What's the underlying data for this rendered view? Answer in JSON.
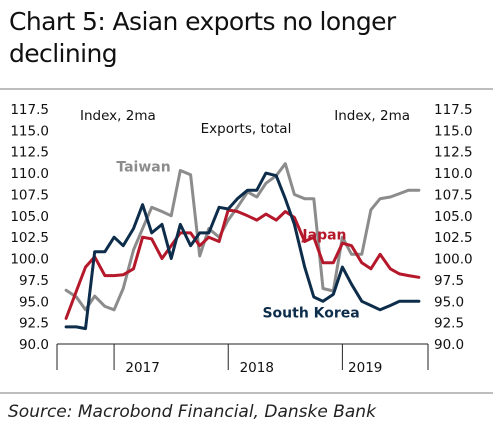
{
  "title_line1": "Chart 5: Asian exports no longer",
  "title_line2": "declining",
  "source": "Source: Macrobond Financial, Danske Bank",
  "chart_data": {
    "type": "line",
    "title": "Exports, total",
    "left_axis_label": "Index, 2ma",
    "right_axis_label": "Index, 2ma",
    "ylim": [
      90.0,
      117.5
    ],
    "yticks": [
      "117.5",
      "115.0",
      "112.5",
      "110.0",
      "107.5",
      "105.0",
      "102.5",
      "100.0",
      "97.5",
      "95.0",
      "92.5",
      "90.0"
    ],
    "ytick_values": [
      117.5,
      115.0,
      112.5,
      110.0,
      107.5,
      105.0,
      102.5,
      100.0,
      97.5,
      95.0,
      92.5,
      90.0
    ],
    "xlim": [
      2016.5,
      2019.75
    ],
    "xticks": [
      "2017",
      "2018",
      "2019"
    ],
    "xtick_values": [
      2017.25,
      2018.25,
      2019.2
    ],
    "year_boundaries": [
      2017.0,
      2018.0,
      2019.0
    ],
    "grid": false,
    "series": [
      {
        "name": "Taiwan",
        "color": "#8c8c8c",
        "x": [
          2016.58,
          2016.67,
          2016.75,
          2016.83,
          2016.92,
          2017.0,
          2017.08,
          2017.17,
          2017.25,
          2017.33,
          2017.42,
          2017.5,
          2017.58,
          2017.67,
          2017.75,
          2017.83,
          2017.92,
          2018.0,
          2018.08,
          2018.17,
          2018.25,
          2018.33,
          2018.42,
          2018.5,
          2018.58,
          2018.67,
          2018.75,
          2018.83,
          2018.92,
          2019.0,
          2019.08,
          2019.17,
          2019.25,
          2019.33,
          2019.42,
          2019.5,
          2019.58,
          2019.67
        ],
        "y": [
          96.3,
          95.5,
          94.0,
          95.6,
          94.4,
          94.0,
          96.5,
          101.0,
          103.5,
          106.0,
          105.5,
          105.0,
          110.3,
          109.8,
          100.3,
          103.5,
          102.5,
          104.5,
          106.0,
          107.8,
          107.2,
          108.8,
          109.7,
          111.1,
          107.5,
          107.0,
          107.0,
          96.5,
          96.2,
          102.5,
          100.5,
          100.5,
          105.7,
          107.0,
          107.2,
          107.6,
          108.0,
          108.0
        ]
      },
      {
        "name": "Japan",
        "color": "#b5182a",
        "x": [
          2016.58,
          2016.67,
          2016.75,
          2016.83,
          2016.92,
          2017.0,
          2017.08,
          2017.17,
          2017.25,
          2017.33,
          2017.42,
          2017.5,
          2017.58,
          2017.67,
          2017.75,
          2017.83,
          2017.92,
          2018.0,
          2018.08,
          2018.17,
          2018.25,
          2018.33,
          2018.42,
          2018.5,
          2018.58,
          2018.67,
          2018.75,
          2018.83,
          2018.92,
          2019.0,
          2019.08,
          2019.17,
          2019.25,
          2019.33,
          2019.42,
          2019.5,
          2019.58,
          2019.67
        ],
        "y": [
          93.0,
          96.2,
          99.0,
          100.2,
          98.0,
          98.0,
          98.1,
          98.8,
          102.5,
          102.3,
          100.0,
          101.5,
          103.0,
          103.0,
          101.5,
          102.5,
          102.0,
          105.7,
          105.5,
          105.0,
          104.5,
          105.2,
          104.5,
          105.5,
          104.8,
          102.0,
          102.5,
          99.5,
          99.5,
          101.8,
          101.5,
          99.5,
          98.8,
          100.5,
          98.8,
          98.2,
          98.0,
          97.8
        ]
      },
      {
        "name": "South Korea",
        "color": "#0d2d4b",
        "x": [
          2016.58,
          2016.67,
          2016.75,
          2016.83,
          2016.92,
          2017.0,
          2017.08,
          2017.17,
          2017.25,
          2017.33,
          2017.42,
          2017.5,
          2017.58,
          2017.67,
          2017.75,
          2017.83,
          2017.92,
          2018.0,
          2018.08,
          2018.17,
          2018.25,
          2018.33,
          2018.42,
          2018.5,
          2018.58,
          2018.67,
          2018.75,
          2018.83,
          2018.92,
          2019.0,
          2019.08,
          2019.17,
          2019.25,
          2019.33,
          2019.42,
          2019.5,
          2019.58,
          2019.67
        ],
        "y": [
          92.0,
          92.0,
          91.8,
          100.8,
          100.8,
          102.5,
          101.5,
          103.5,
          106.3,
          103.0,
          104.0,
          100.0,
          104.0,
          101.5,
          103.0,
          103.0,
          106.0,
          105.8,
          107.0,
          108.0,
          108.0,
          110.0,
          109.7,
          107.0,
          104.0,
          99.0,
          95.5,
          95.0,
          95.8,
          99.0,
          97.0,
          95.0,
          94.5,
          94.0,
          94.5,
          95.0,
          95.0,
          95.0
        ]
      }
    ],
    "annotations": [
      {
        "text": "Taiwan",
        "x": 2017.02,
        "y": 110.2,
        "color": "#8c8c8c"
      },
      {
        "text": "Japan",
        "x": 2018.65,
        "y": 102.2,
        "color": "#b5182a"
      },
      {
        "text": "South Korea",
        "x": 2018.3,
        "y": 93.1,
        "color": "#0d2d4b"
      }
    ]
  }
}
